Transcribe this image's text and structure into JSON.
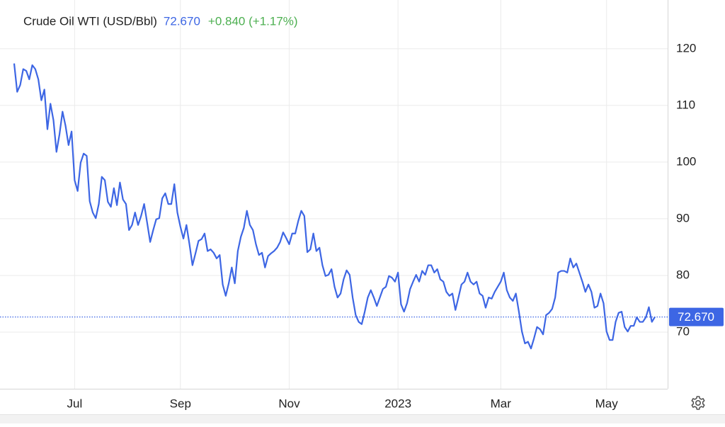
{
  "chart_data": {
    "type": "line",
    "title": "Crude Oil WTI (USD/Bbl)",
    "current": {
      "value": 72.67,
      "label": "72.670"
    },
    "change_label": "+0.840 (+1.17%)",
    "color": "#3d66e4",
    "grid": true,
    "categories": [
      null,
      null,
      null,
      null,
      null,
      null,
      null,
      null,
      null,
      null,
      null,
      null,
      null,
      null,
      null,
      null,
      null,
      null,
      null,
      null,
      "Jul",
      null,
      null,
      null,
      null,
      null,
      null,
      null,
      null,
      null,
      null,
      null,
      null,
      null,
      null,
      null,
      null,
      null,
      null,
      null,
      null,
      null,
      null,
      null,
      null,
      null,
      null,
      null,
      null,
      null,
      null,
      null,
      null,
      null,
      null,
      "Sep",
      null,
      null,
      null,
      null,
      null,
      null,
      null,
      null,
      null,
      null,
      null,
      null,
      null,
      null,
      null,
      null,
      null,
      null,
      null,
      null,
      null,
      null,
      null,
      null,
      null,
      null,
      null,
      null,
      null,
      null,
      null,
      null,
      null,
      null,
      null,
      "Nov",
      null,
      null,
      null,
      null,
      null,
      null,
      null,
      null,
      null,
      null,
      null,
      null,
      null,
      null,
      null,
      null,
      null,
      null,
      null,
      null,
      null,
      null,
      null,
      null,
      null,
      null,
      null,
      null,
      null,
      null,
      null,
      null,
      null,
      null,
      null,
      "2023",
      null,
      null,
      null,
      null,
      null,
      null,
      null,
      null,
      null,
      null,
      null,
      null,
      null,
      null,
      null,
      null,
      null,
      null,
      null,
      null,
      null,
      null,
      null,
      null,
      null,
      null,
      null,
      null,
      null,
      null,
      null,
      null,
      null,
      "Mar",
      null,
      null,
      null,
      null,
      null,
      null,
      null,
      null,
      null,
      null,
      null,
      null,
      null,
      null,
      null,
      null,
      null,
      null,
      null,
      null,
      null,
      null,
      null,
      null,
      null,
      null,
      null,
      null,
      null,
      null,
      null,
      null,
      null,
      null,
      "May",
      null,
      null,
      null,
      null,
      null,
      null,
      null,
      null,
      null,
      null,
      null,
      null,
      null,
      null,
      null,
      null
    ],
    "values": [
      117.4,
      112.4,
      113.6,
      116.4,
      116.1,
      114.6,
      117.1,
      116.4,
      114.6,
      110.9,
      112.8,
      105.8,
      110.3,
      107.4,
      101.8,
      104.9,
      108.9,
      106.4,
      103.0,
      105.4,
      96.8,
      94.9,
      99.9,
      101.5,
      101.1,
      93.1,
      91.1,
      90.1,
      92.6,
      97.4,
      96.8,
      93.0,
      92.1,
      95.4,
      92.4,
      96.4,
      93.4,
      92.6,
      88.0,
      88.9,
      91.1,
      88.9,
      90.5,
      92.6,
      89.3,
      85.9,
      88.0,
      89.9,
      90.1,
      93.6,
      94.5,
      92.6,
      92.6,
      96.1,
      91.1,
      88.6,
      86.5,
      88.9,
      85.5,
      81.8,
      83.9,
      86.1,
      86.4,
      87.4,
      84.3,
      84.6,
      84.0,
      83.0,
      83.6,
      78.4,
      76.4,
      78.6,
      81.4,
      78.6,
      84.3,
      86.8,
      88.4,
      91.4,
      88.9,
      88.0,
      85.5,
      83.6,
      84.0,
      81.4,
      83.4,
      83.9,
      84.3,
      84.9,
      85.9,
      87.6,
      86.6,
      85.5,
      87.4,
      87.4,
      89.6,
      91.4,
      90.5,
      84.1,
      84.6,
      87.4,
      84.3,
      84.9,
      81.8,
      79.9,
      80.1,
      81.1,
      78.0,
      76.1,
      76.8,
      79.3,
      80.9,
      80.1,
      76.1,
      73.0,
      71.8,
      71.4,
      73.6,
      76.1,
      77.4,
      76.1,
      74.6,
      76.1,
      77.6,
      78.0,
      79.9,
      79.6,
      78.9,
      80.5,
      74.9,
      73.6,
      75.1,
      77.6,
      78.9,
      80.1,
      78.9,
      80.8,
      80.1,
      81.8,
      81.8,
      80.5,
      81.1,
      79.3,
      78.9,
      77.1,
      76.4,
      76.8,
      73.9,
      76.1,
      78.4,
      78.9,
      80.5,
      78.9,
      78.4,
      78.9,
      76.8,
      76.4,
      74.3,
      76.1,
      75.9,
      77.1,
      78.0,
      78.9,
      80.5,
      77.4,
      76.1,
      75.5,
      76.8,
      73.6,
      70.1,
      68.0,
      68.3,
      67.1,
      68.9,
      70.9,
      70.5,
      69.6,
      73.0,
      73.4,
      74.1,
      76.1,
      80.5,
      80.8,
      80.8,
      80.5,
      83.0,
      81.4,
      82.1,
      80.5,
      78.9,
      77.1,
      78.4,
      77.1,
      74.3,
      74.6,
      76.8,
      75.1,
      70.1,
      68.6,
      68.6,
      71.8,
      73.4,
      73.6,
      70.9,
      70.1,
      71.1,
      71.1,
      72.6,
      71.8,
      71.8,
      72.6,
      74.4,
      71.8,
      72.67
    ],
    "ylim": [
      60,
      128.6
    ],
    "yticks": [
      70,
      80,
      90,
      100,
      110,
      120
    ]
  }
}
